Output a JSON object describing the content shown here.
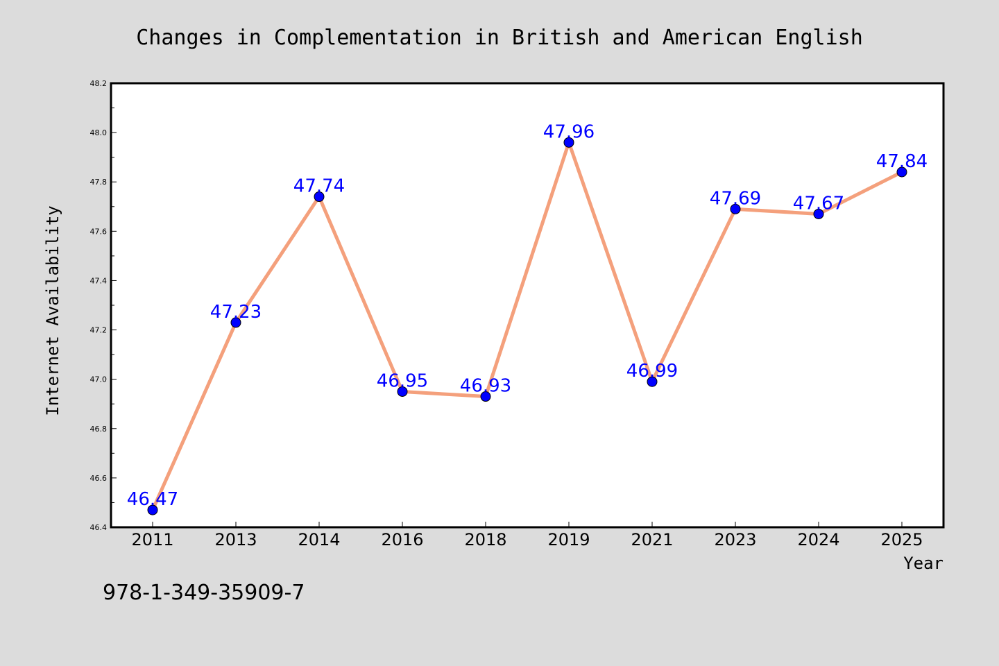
{
  "chart_data": {
    "type": "line",
    "title": "Changes in Complementation in British and American English",
    "xlabel": "Year",
    "ylabel": "Internet Availability",
    "categories": [
      "2011",
      "2013",
      "2014",
      "2016",
      "2018",
      "2019",
      "2021",
      "2023",
      "2024",
      "2025"
    ],
    "series": [
      {
        "values": [
          46.47,
          47.23,
          47.74,
          46.95,
          46.93,
          47.96,
          46.99,
          47.69,
          47.67,
          47.84
        ],
        "data_labels": [
          "46.47",
          "47.23",
          "47.74",
          "46.95",
          "46.93",
          "47.96",
          "46.99",
          "47.69",
          "47.67",
          "47.84"
        ],
        "line_color": "#f4a07c",
        "marker_color": "#0000ff"
      }
    ],
    "ylim": [
      46.4,
      48.2
    ],
    "yticks": [
      "46.4",
      "46.6",
      "46.8",
      "47.0",
      "47.2",
      "47.4",
      "47.6",
      "47.8",
      "48.0",
      "48.2"
    ],
    "grid": false,
    "legend": "none"
  },
  "footer": {
    "isbn": "978-1-349-35909-7"
  },
  "colors": {
    "background": "#dcdcdc",
    "plot_background": "#ffffff",
    "label_color": "#0000ff"
  }
}
